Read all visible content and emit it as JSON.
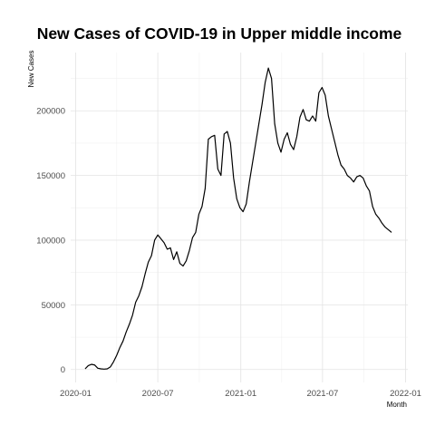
{
  "chart_data": {
    "type": "line",
    "title": "New Cases of COVID-19 in Upper middle income",
    "xlabel": "Month",
    "ylabel": "New Cases",
    "x_ticks": [
      {
        "date": "2020-01-01",
        "label": "2020-01"
      },
      {
        "date": "2020-07-01",
        "label": "2020-07"
      },
      {
        "date": "2021-01-01",
        "label": "2021-01"
      },
      {
        "date": "2021-07-01",
        "label": "2021-07"
      },
      {
        "date": "2022-01-01",
        "label": "2022-01"
      }
    ],
    "y_ticks": [
      {
        "value": 0,
        "label": "0"
      },
      {
        "value": 50000,
        "label": "50000"
      },
      {
        "value": 100000,
        "label": "100000"
      },
      {
        "value": 150000,
        "label": "150000"
      },
      {
        "value": 200000,
        "label": "200000"
      }
    ],
    "xlim": [
      "2019-12-21",
      "2022-01-06"
    ],
    "ylim": [
      -10000,
      245000
    ],
    "grid": true,
    "series": [
      {
        "color": "#000000",
        "x": [
          "2020-01-22",
          "2020-01-29",
          "2020-02-05",
          "2020-02-12",
          "2020-02-19",
          "2020-02-26",
          "2020-03-04",
          "2020-03-11",
          "2020-03-18",
          "2020-03-25",
          "2020-04-01",
          "2020-04-08",
          "2020-04-15",
          "2020-04-22",
          "2020-04-29",
          "2020-05-06",
          "2020-05-13",
          "2020-05-20",
          "2020-05-27",
          "2020-06-03",
          "2020-06-10",
          "2020-06-17",
          "2020-06-24",
          "2020-07-01",
          "2020-07-08",
          "2020-07-15",
          "2020-07-22",
          "2020-07-29",
          "2020-08-05",
          "2020-08-12",
          "2020-08-19",
          "2020-08-26",
          "2020-09-02",
          "2020-09-09",
          "2020-09-16",
          "2020-09-23",
          "2020-09-30",
          "2020-10-07",
          "2020-10-14",
          "2020-10-21",
          "2020-10-28",
          "2020-11-04",
          "2020-11-11",
          "2020-11-18",
          "2020-11-25",
          "2020-12-02",
          "2020-12-09",
          "2020-12-16",
          "2020-12-23",
          "2020-12-30",
          "2021-01-06",
          "2021-01-13",
          "2021-01-20",
          "2021-01-27",
          "2021-02-03",
          "2021-02-10",
          "2021-02-17",
          "2021-02-24",
          "2021-03-03",
          "2021-03-10",
          "2021-03-17",
          "2021-03-24",
          "2021-03-31",
          "2021-04-07",
          "2021-04-14",
          "2021-04-21",
          "2021-04-28",
          "2021-05-05",
          "2021-05-12",
          "2021-05-19",
          "2021-05-26",
          "2021-06-02",
          "2021-06-09",
          "2021-06-16",
          "2021-06-23",
          "2021-06-30",
          "2021-07-07",
          "2021-07-14",
          "2021-07-21",
          "2021-07-28",
          "2021-08-04",
          "2021-08-11",
          "2021-08-18",
          "2021-08-25",
          "2021-09-01",
          "2021-09-08",
          "2021-09-15",
          "2021-09-22",
          "2021-09-29",
          "2021-10-06",
          "2021-10-13",
          "2021-10-20",
          "2021-10-27",
          "2021-11-03",
          "2021-11-10",
          "2021-11-17",
          "2021-11-24",
          "2021-12-01"
        ],
        "values": [
          500,
          3000,
          4000,
          3500,
          1000,
          500,
          300,
          500,
          2000,
          6000,
          11000,
          17000,
          22000,
          29000,
          35000,
          42000,
          52000,
          57000,
          64000,
          74000,
          83000,
          88000,
          100000,
          104000,
          101000,
          98000,
          93000,
          94000,
          85000,
          91000,
          82000,
          80000,
          84000,
          92000,
          102000,
          106000,
          120000,
          126000,
          140000,
          178000,
          180000,
          181000,
          155000,
          150000,
          182000,
          184000,
          175000,
          148000,
          132000,
          125000,
          122000,
          128000,
          145000,
          160000,
          175000,
          190000,
          205000,
          222000,
          233000,
          225000,
          190000,
          175000,
          168000,
          178000,
          183000,
          174000,
          170000,
          180000,
          195000,
          201000,
          193000,
          192000,
          196000,
          192000,
          214000,
          218000,
          212000,
          196000,
          186000,
          176000,
          166000,
          158000,
          155000,
          150000,
          148000,
          145000,
          149000,
          150000,
          148000,
          142000,
          138000,
          126000,
          120000,
          117000,
          113000,
          110000,
          108000,
          106000
        ]
      }
    ]
  }
}
